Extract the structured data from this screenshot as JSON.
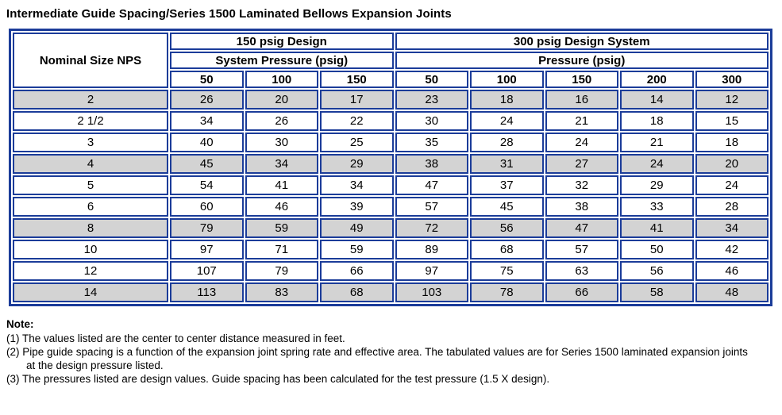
{
  "title": "Intermediate Guide Spacing/Series 1500 Laminated Bellows Expansion Joints",
  "table": {
    "corner_header": "Nominal Size NPS",
    "groups": [
      {
        "label": "150 psig Design",
        "sublabel": "System Pressure (psig)",
        "columns": [
          "50",
          "100",
          "150"
        ]
      },
      {
        "label": "300 psig Design System",
        "sublabel": "Pressure (psig)",
        "columns": [
          "50",
          "100",
          "150",
          "200",
          "300"
        ]
      }
    ],
    "rows": [
      {
        "size": "2",
        "values": [
          "26",
          "20",
          "17",
          "23",
          "18",
          "16",
          "14",
          "12"
        ],
        "shaded": true
      },
      {
        "size": "2 1/2",
        "values": [
          "34",
          "26",
          "22",
          "30",
          "24",
          "21",
          "18",
          "15"
        ],
        "shaded": false
      },
      {
        "size": "3",
        "values": [
          "40",
          "30",
          "25",
          "35",
          "28",
          "24",
          "21",
          "18"
        ],
        "shaded": false
      },
      {
        "size": "4",
        "values": [
          "45",
          "34",
          "29",
          "38",
          "31",
          "27",
          "24",
          "20"
        ],
        "shaded": true
      },
      {
        "size": "5",
        "values": [
          "54",
          "41",
          "34",
          "47",
          "37",
          "32",
          "29",
          "24"
        ],
        "shaded": false
      },
      {
        "size": "6",
        "values": [
          "60",
          "46",
          "39",
          "57",
          "45",
          "38",
          "33",
          "28"
        ],
        "shaded": false
      },
      {
        "size": "8",
        "values": [
          "79",
          "59",
          "49",
          "72",
          "56",
          "47",
          "41",
          "34"
        ],
        "shaded": true
      },
      {
        "size": "10",
        "values": [
          "97",
          "71",
          "59",
          "89",
          "68",
          "57",
          "50",
          "42"
        ],
        "shaded": false
      },
      {
        "size": "12",
        "values": [
          "107",
          "79",
          "66",
          "97",
          "75",
          "63",
          "56",
          "46"
        ],
        "shaded": false
      },
      {
        "size": "14",
        "values": [
          "113",
          "83",
          "68",
          "103",
          "78",
          "66",
          "58",
          "48"
        ],
        "shaded": true
      }
    ]
  },
  "notes": {
    "heading": "Note:",
    "items": [
      "(1) The values listed are the center to center distance measured in feet.",
      "(2) Pipe guide spacing is a function of the expansion joint spring rate and effective area. The tabulated values are for Series 1500 laminated expansion joints at the design pressure listed.",
      "(3) The pressures listed are design values. Guide spacing has been calculated for the test pressure (1.5 X design)."
    ]
  },
  "colors": {
    "border": "#1b3c99",
    "shaded_row": "#d3d3d3",
    "text": "#000000"
  }
}
